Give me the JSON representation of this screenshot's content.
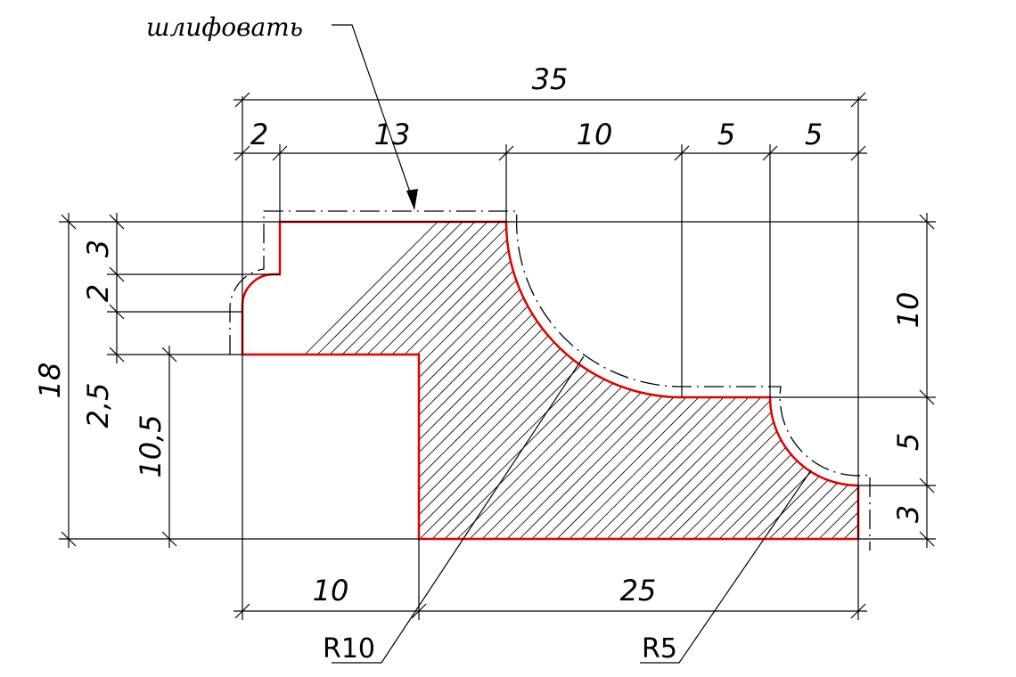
{
  "annotation": {
    "note": "шлифовать"
  },
  "dimensions": {
    "overall_width": "35",
    "top_step_width": "2",
    "top_flat_width": "13",
    "big_arc_width": "10",
    "flat_5_width": "5",
    "small_arc_width": "5",
    "bottom_left_width": "10",
    "bottom_right_width": "25",
    "overall_height": "18",
    "step_height": "3",
    "fillet_height": "2",
    "lip_height": "2,5",
    "notch_height": "10,5",
    "right_top_height": "10",
    "right_mid_height": "5",
    "right_bottom_height": "3"
  },
  "radii": {
    "big": "R10",
    "small": "R5"
  },
  "colors": {
    "outline": "#e00000",
    "lines": "#000000"
  }
}
